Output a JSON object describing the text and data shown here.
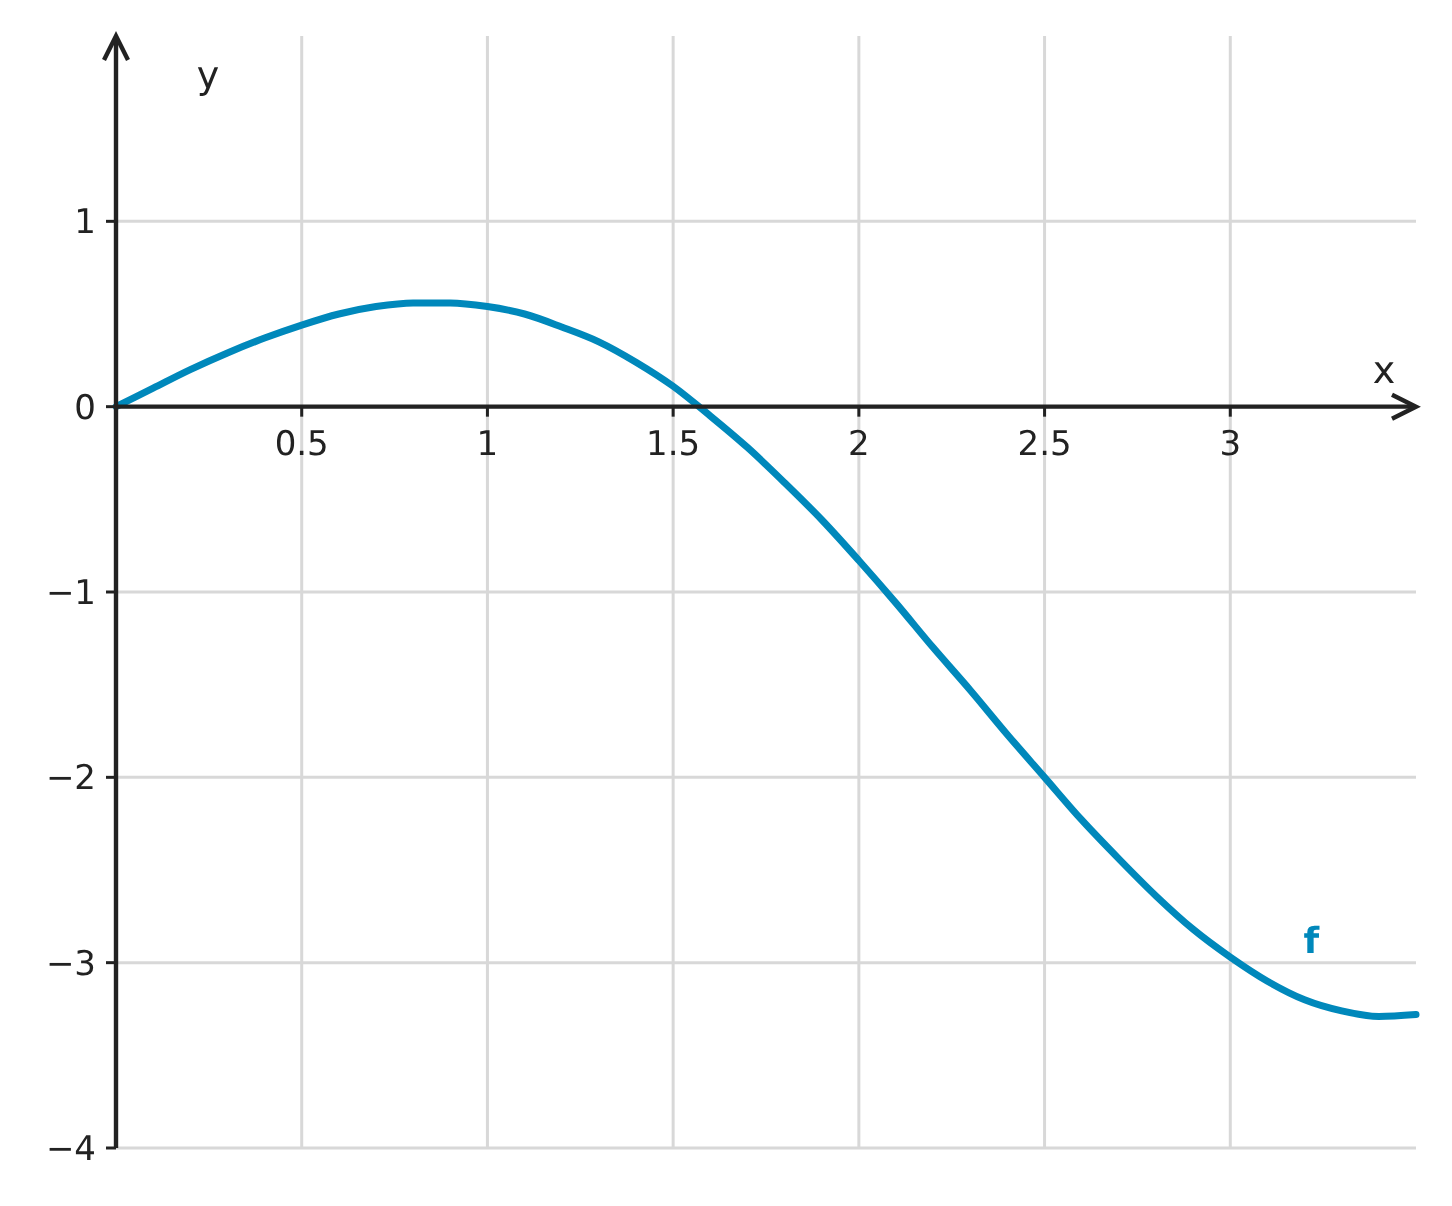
{
  "chart_data": {
    "type": "line",
    "xlabel": "x",
    "ylabel": "y",
    "xlim": [
      0,
      3.5
    ],
    "ylim": [
      -4,
      2
    ],
    "xticks": [
      0.5,
      1,
      1.5,
      2,
      2.5,
      3
    ],
    "yticks": [
      {
        "value": -4,
        "label": "−4"
      },
      {
        "value": -3,
        "label": "−3"
      },
      {
        "value": -2,
        "label": "−2"
      },
      {
        "value": -1,
        "label": "−1"
      },
      0,
      1
    ],
    "grid": true,
    "series": [
      {
        "name": "f",
        "color": "#0088bb",
        "x": [
          0,
          0.1,
          0.2,
          0.3,
          0.4,
          0.5,
          0.6,
          0.7,
          0.8,
          0.9,
          1,
          1.1,
          1.2,
          1.3,
          1.4,
          1.5,
          1.6,
          1.7,
          1.8,
          1.9,
          2,
          2.1,
          2.2,
          2.3,
          2.4,
          2.5,
          2.6,
          2.7,
          2.8,
          2.9,
          3,
          3.1,
          3.2,
          3.3,
          3.4,
          3.5
        ],
        "values": [
          0,
          0.1,
          0.2,
          0.29,
          0.37,
          0.44,
          0.5,
          0.54,
          0.56,
          0.56,
          0.54,
          0.5,
          0.43,
          0.35,
          0.24,
          0.11,
          -0.05,
          -0.22,
          -0.41,
          -0.61,
          -0.83,
          -1.06,
          -1.3,
          -1.53,
          -1.77,
          -2,
          -2.23,
          -2.44,
          -2.64,
          -2.82,
          -2.97,
          -3.1,
          -3.2,
          -3.26,
          -3.29,
          -3.28
        ]
      }
    ]
  }
}
